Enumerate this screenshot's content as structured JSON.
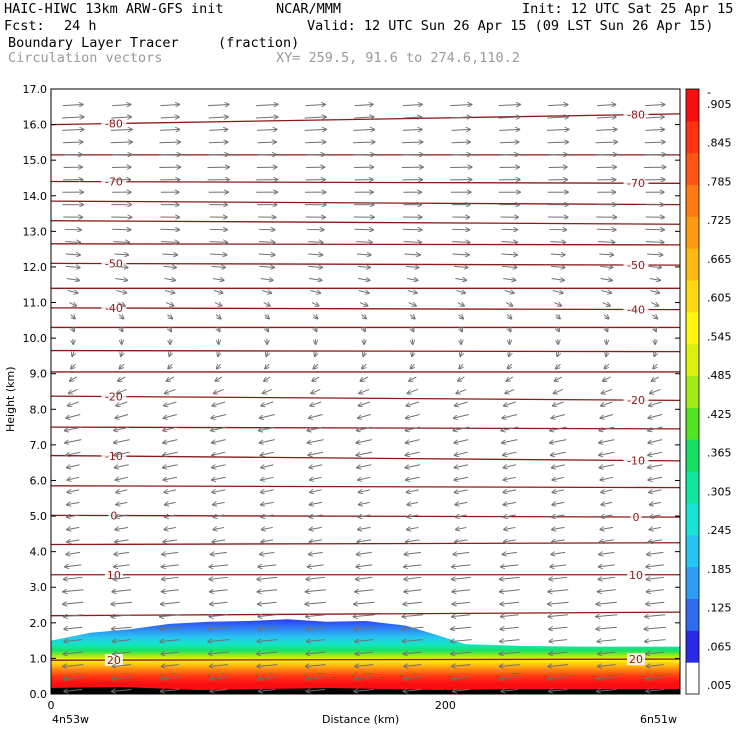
{
  "header": {
    "model": "HAIC-HIWC 13km ARW-GFS init",
    "org": "NCAR/MMM",
    "init": "Init: 12 UTC Sat 25 Apr 15",
    "fcst_label": "Fcst:",
    "fcst_value": "24 h",
    "valid": "Valid: 12 UTC Sun 26 Apr 15 (09 LST Sun 26 Apr 15)",
    "field": "Boundary Layer Tracer",
    "field_units": "(fraction)",
    "vectors_label": "Circulation vectors",
    "xy_label": "XY= 259.5, 91.6 to 274.6,110.2"
  },
  "chart_data": {
    "type": "heatmap",
    "xlabel": "Distance (km)",
    "ylabel": "Height (km)",
    "xlim": [
      0,
      319
    ],
    "ylim": [
      0,
      17
    ],
    "x_ticks": [
      "0",
      "200"
    ],
    "x_end_labels": {
      "left": "4n53w",
      "right": "6n51w"
    },
    "y_ticks": [
      "0.0",
      "1.0",
      "2.0",
      "3.0",
      "4.0",
      "5.0",
      "6.0",
      "7.0",
      "8.0",
      "9.0",
      "10.0",
      "11.0",
      "12.0",
      "13.0",
      "14.0",
      "15.0",
      "16.0",
      "17.0"
    ],
    "colorbar": {
      "labels": [
        ".005",
        ".065",
        ".125",
        ".185",
        ".245",
        ".305",
        ".365",
        ".425",
        ".485",
        ".545",
        ".605",
        ".665",
        ".725",
        ".785",
        ".845",
        ".905",
        "-"
      ],
      "colors": [
        "#ffffff",
        "#2a2ae6",
        "#2f6cf0",
        "#2d9df5",
        "#25c6f2",
        "#16e4d7",
        "#10e6a0",
        "#15e060",
        "#52e620",
        "#a2ec12",
        "#dcf00c",
        "#fff70d",
        "#ffd80e",
        "#ffba10",
        "#ff9a10",
        "#ff7a10",
        "#ff5512",
        "#ff3214",
        "#fb0e12"
      ]
    },
    "tracer_top_km": [
      [
        0,
        1.5
      ],
      [
        20,
        1.72
      ],
      [
        40,
        1.82
      ],
      [
        60,
        1.97
      ],
      [
        80,
        2.03
      ],
      [
        100,
        2.05
      ],
      [
        120,
        2.1
      ],
      [
        140,
        2.03
      ],
      [
        160,
        2.05
      ],
      [
        180,
        1.92
      ],
      [
        195,
        1.67
      ],
      [
        210,
        1.4
      ],
      [
        240,
        1.35
      ],
      [
        270,
        1.33
      ],
      [
        300,
        1.33
      ],
      [
        319,
        1.33
      ]
    ],
    "tracer_top_kmm": null,
    "temperature_contours": {
      "units": "C",
      "lines": [
        {
          "label": "20",
          "z": [
            0.95,
            0.98
          ]
        },
        {
          "label": "10",
          "z": [
            3.35,
            3.35
          ]
        },
        {
          "label": "",
          "z": [
            2.2,
            2.3
          ]
        },
        {
          "label": "",
          "z": [
            4.2,
            4.25
          ]
        },
        {
          "label": "0",
          "z": [
            5.02,
            4.97
          ]
        },
        {
          "label": "",
          "z": [
            5.85,
            5.8
          ]
        },
        {
          "label": "-10",
          "z": [
            6.7,
            6.55
          ]
        },
        {
          "label": "",
          "z": [
            7.5,
            7.45
          ]
        },
        {
          "label": "-20",
          "z": [
            8.37,
            8.25
          ]
        },
        {
          "label": "",
          "z": [
            9.05,
            9.05
          ]
        },
        {
          "label": "",
          "z": [
            9.65,
            9.62
          ]
        },
        {
          "label": "",
          "z": [
            10.3,
            10.3
          ]
        },
        {
          "label": "-40",
          "z": [
            10.85,
            10.8
          ]
        },
        {
          "label": "",
          "z": [
            11.4,
            11.4
          ]
        },
        {
          "label": "-50",
          "z": [
            12.1,
            12.05
          ]
        },
        {
          "label": "",
          "z": [
            12.65,
            12.62
          ]
        },
        {
          "label": "",
          "z": [
            13.3,
            13.2
          ]
        },
        {
          "label": "",
          "z": [
            13.85,
            13.75
          ]
        },
        {
          "label": "-70",
          "z": [
            14.4,
            14.35
          ]
        },
        {
          "label": "",
          "z": [
            15.15,
            15.15
          ]
        },
        {
          "label": "-80",
          "z": [
            16.0,
            16.3
          ]
        }
      ]
    },
    "wind_vectors": {
      "u_profile": [
        [
          0,
          -0.9
        ],
        [
          2,
          -1.0
        ],
        [
          3.5,
          -0.9
        ],
        [
          4.5,
          -0.6
        ],
        [
          5.5,
          -0.6
        ],
        [
          6.5,
          -0.7
        ],
        [
          7.5,
          -0.8
        ],
        [
          8.5,
          -0.5
        ],
        [
          9.5,
          -0.1
        ],
        [
          10.5,
          0.2
        ],
        [
          11.5,
          0.55
        ],
        [
          12.5,
          0.8
        ],
        [
          13.5,
          0.95
        ],
        [
          14.5,
          1.0
        ],
        [
          16.5,
          1.0
        ]
      ],
      "w_profile": [
        [
          0,
          -0.08
        ],
        [
          5,
          -0.1
        ],
        [
          9,
          -0.2
        ],
        [
          10,
          -0.25
        ],
        [
          12,
          -0.05
        ],
        [
          16,
          0.05
        ]
      ]
    }
  }
}
